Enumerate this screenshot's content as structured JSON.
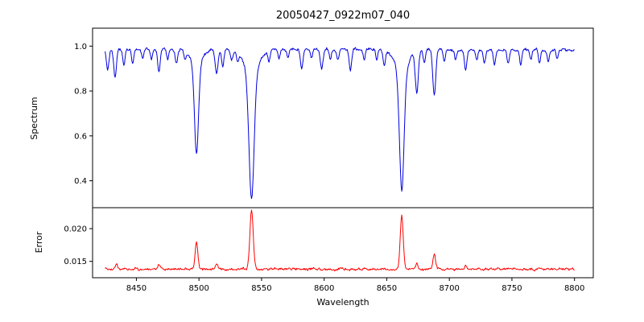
{
  "figure": {
    "background": "#ffffff"
  },
  "chart_data": {
    "type": "line",
    "title": "20050427_0922m07_040",
    "xlabel": "Wavelength",
    "x_range": [
      8425,
      8800
    ],
    "xlim": [
      8415,
      8815
    ],
    "x_ticks": [
      8450,
      8500,
      8550,
      8600,
      8650,
      8700,
      8750,
      8800
    ],
    "x_tick_labels": [
      "8450",
      "8500",
      "8550",
      "8600",
      "8650",
      "8700",
      "8750",
      "8800"
    ],
    "grid": false,
    "legend": "none",
    "panels": [
      {
        "name": "spectrum",
        "ylabel": "Spectrum",
        "color": "#0000dd",
        "ylim": [
          0.28,
          1.08
        ],
        "y_ticks": [
          0.4,
          0.6,
          0.8,
          1.0
        ],
        "y_tick_labels": [
          "0.4",
          "0.6",
          "0.8",
          "1.0"
        ],
        "continuum": 0.985,
        "noise_amplitude": 0.011,
        "jitter": 0.004,
        "absorption_lines": [
          {
            "center": 8498,
            "depth": 0.4,
            "width": 1.6
          },
          {
            "center": 8498,
            "depth": 0.065,
            "width": 4.5
          },
          {
            "center": 8542,
            "depth": 0.555,
            "width": 2.0
          },
          {
            "center": 8542,
            "depth": 0.115,
            "width": 5.5
          },
          {
            "center": 8662,
            "depth": 0.525,
            "width": 1.8
          },
          {
            "center": 8662,
            "depth": 0.105,
            "width": 5.0
          },
          {
            "center": 8427,
            "depth": 0.09,
            "width": 1.0
          },
          {
            "center": 8433,
            "depth": 0.12,
            "width": 1.1
          },
          {
            "center": 8440,
            "depth": 0.07,
            "width": 0.9
          },
          {
            "center": 8447,
            "depth": 0.06,
            "width": 0.9
          },
          {
            "center": 8455,
            "depth": 0.04,
            "width": 0.8
          },
          {
            "center": 8462,
            "depth": 0.05,
            "width": 0.8
          },
          {
            "center": 8468,
            "depth": 0.1,
            "width": 1.0
          },
          {
            "center": 8475,
            "depth": 0.05,
            "width": 0.8
          },
          {
            "center": 8482,
            "depth": 0.06,
            "width": 0.9
          },
          {
            "center": 8489,
            "depth": 0.04,
            "width": 0.8
          },
          {
            "center": 8514,
            "depth": 0.11,
            "width": 1.1
          },
          {
            "center": 8519,
            "depth": 0.08,
            "width": 0.9
          },
          {
            "center": 8526,
            "depth": 0.05,
            "width": 0.9
          },
          {
            "center": 8531,
            "depth": 0.04,
            "width": 0.8
          },
          {
            "center": 8556,
            "depth": 0.05,
            "width": 0.9
          },
          {
            "center": 8564,
            "depth": 0.04,
            "width": 0.8
          },
          {
            "center": 8571,
            "depth": 0.04,
            "width": 0.8
          },
          {
            "center": 8582,
            "depth": 0.08,
            "width": 1.0
          },
          {
            "center": 8590,
            "depth": 0.04,
            "width": 0.8
          },
          {
            "center": 8598,
            "depth": 0.08,
            "width": 1.0
          },
          {
            "center": 8605,
            "depth": 0.04,
            "width": 0.8
          },
          {
            "center": 8611,
            "depth": 0.05,
            "width": 0.9
          },
          {
            "center": 8621,
            "depth": 0.09,
            "width": 1.0
          },
          {
            "center": 8632,
            "depth": 0.05,
            "width": 0.8
          },
          {
            "center": 8642,
            "depth": 0.05,
            "width": 0.8
          },
          {
            "center": 8648,
            "depth": 0.07,
            "width": 0.9
          },
          {
            "center": 8674,
            "depth": 0.19,
            "width": 1.2
          },
          {
            "center": 8680,
            "depth": 0.06,
            "width": 0.9
          },
          {
            "center": 8688,
            "depth": 0.21,
            "width": 1.2
          },
          {
            "center": 8696,
            "depth": 0.05,
            "width": 0.9
          },
          {
            "center": 8705,
            "depth": 0.04,
            "width": 0.8
          },
          {
            "center": 8713,
            "depth": 0.09,
            "width": 1.0
          },
          {
            "center": 8722,
            "depth": 0.05,
            "width": 0.8
          },
          {
            "center": 8728,
            "depth": 0.06,
            "width": 0.9
          },
          {
            "center": 8736,
            "depth": 0.07,
            "width": 0.9
          },
          {
            "center": 8747,
            "depth": 0.06,
            "width": 0.9
          },
          {
            "center": 8757,
            "depth": 0.07,
            "width": 0.9
          },
          {
            "center": 8765,
            "depth": 0.05,
            "width": 0.8
          },
          {
            "center": 8772,
            "depth": 0.06,
            "width": 0.9
          },
          {
            "center": 8779,
            "depth": 0.05,
            "width": 0.8
          },
          {
            "center": 8786,
            "depth": 0.04,
            "width": 0.8
          }
        ]
      },
      {
        "name": "error",
        "ylabel": "Error",
        "color": "#ff0000",
        "ylim": [
          0.0125,
          0.0232
        ],
        "y_ticks": [
          0.015,
          0.02
        ],
        "y_tick_labels": [
          "0.015",
          "0.020"
        ],
        "baseline": 0.0138,
        "noise_amplitude": 0.00028,
        "jitter": 0.00013,
        "peaks": [
          {
            "center": 8498,
            "height": 0.0042,
            "width": 1.1
          },
          {
            "center": 8542,
            "height": 0.0092,
            "width": 1.3
          },
          {
            "center": 8662,
            "height": 0.0082,
            "width": 1.2
          },
          {
            "center": 8688,
            "height": 0.0024,
            "width": 1.0
          },
          {
            "center": 8674,
            "height": 0.001,
            "width": 0.9
          },
          {
            "center": 8434,
            "height": 0.0007,
            "width": 0.9
          },
          {
            "center": 8468,
            "height": 0.0007,
            "width": 0.9
          },
          {
            "center": 8514,
            "height": 0.0008,
            "width": 0.9
          },
          {
            "center": 8713,
            "height": 0.0006,
            "width": 0.8
          }
        ]
      }
    ]
  }
}
